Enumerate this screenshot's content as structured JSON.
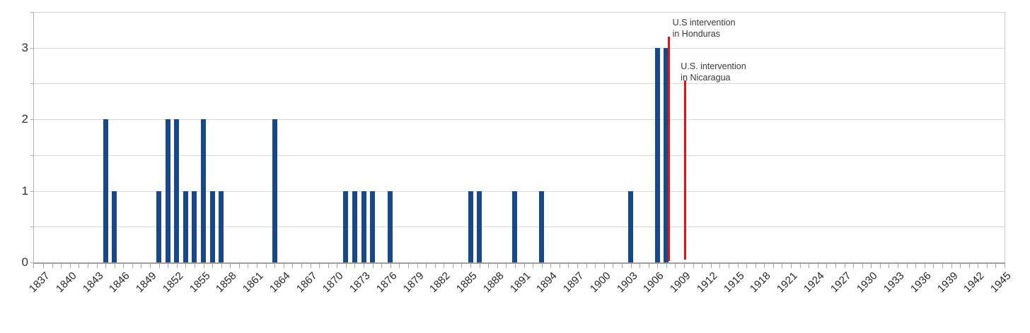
{
  "chart_data": {
    "type": "bar",
    "title": "",
    "x_axis": {
      "unit": "year",
      "range_start": 1837,
      "range_end": 1945,
      "tick_step": 1,
      "label_step": 3,
      "tick_labels": [
        "1837",
        "1840",
        "1843",
        "1846",
        "1849",
        "1852",
        "1855",
        "1858",
        "1861",
        "1864",
        "1867",
        "1870",
        "1873",
        "1876",
        "1879",
        "1882",
        "1885",
        "1888",
        "1891",
        "1894",
        "1897",
        "1900",
        "1903",
        "1906",
        "1909",
        "1912",
        "1915",
        "1918",
        "1921",
        "1924",
        "1927",
        "1930",
        "1933",
        "1936",
        "1939",
        "1942",
        "1945"
      ]
    },
    "y_axis": {
      "tick_labels": [
        "0",
        "1",
        "2",
        "3"
      ],
      "min": 0,
      "max": 3.5,
      "gridline_step": 0.5,
      "grid_on": true
    },
    "bars": [
      {
        "year": 1844,
        "value": 2
      },
      {
        "year": 1845,
        "value": 1
      },
      {
        "year": 1850,
        "value": 1
      },
      {
        "year": 1851,
        "value": 2
      },
      {
        "year": 1852,
        "value": 2
      },
      {
        "year": 1853,
        "value": 1
      },
      {
        "year": 1854,
        "value": 1
      },
      {
        "year": 1855,
        "value": 2
      },
      {
        "year": 1856,
        "value": 1
      },
      {
        "year": 1857,
        "value": 1
      },
      {
        "year": 1863,
        "value": 2
      },
      {
        "year": 1871,
        "value": 1
      },
      {
        "year": 1872,
        "value": 1
      },
      {
        "year": 1873,
        "value": 1
      },
      {
        "year": 1874,
        "value": 1
      },
      {
        "year": 1876,
        "value": 1
      },
      {
        "year": 1885,
        "value": 1
      },
      {
        "year": 1886,
        "value": 1
      },
      {
        "year": 1890,
        "value": 1
      },
      {
        "year": 1893,
        "value": 1
      },
      {
        "year": 1903,
        "value": 1
      },
      {
        "year": 1906,
        "value": 3
      },
      {
        "year": 1907,
        "value": 3
      }
    ],
    "annotations": [
      {
        "lines": [
          "U.S intervention",
          "in Honduras"
        ],
        "year": 1907.3,
        "line_top_value": 3.16,
        "line_bottom_value": 0.02,
        "label_side": "right"
      },
      {
        "lines": [
          "U.S. intervention",
          "in Nicaragua"
        ],
        "year": 1909.1,
        "line_top_value": 2.54,
        "line_bottom_value": 0.04,
        "label_side": "left"
      }
    ],
    "colors": {
      "bar": "#17498a",
      "annotation_line": "#e31313",
      "gridline": "#d9d9d9",
      "axis": "#a0a0a0",
      "x_label": "#262626",
      "y_label": "#333333",
      "annotation_text": "#3a3a3a",
      "background": "#ffffff"
    },
    "legend": null
  }
}
